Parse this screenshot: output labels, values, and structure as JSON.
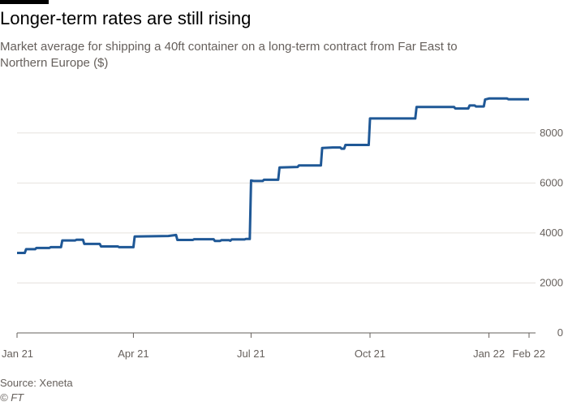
{
  "title": "Longer-term rates are still rising",
  "subtitle": "Market average for shipping a 40ft container on a long-term contract from Far East to Northern Europe ($)",
  "source": "Source: Xeneta",
  "credit": "© FT",
  "colors": {
    "line": "#1f5896",
    "grid": "#e6e2de",
    "axis": "#66605c"
  },
  "chart_data": {
    "type": "line",
    "title": "Longer-term rates are still rising",
    "subtitle": "Market average for shipping a 40ft container on a long-term contract from Far East to Northern Europe ($)",
    "xlabel": "",
    "ylabel": "",
    "xlim": [
      "2021-01-01",
      "2022-02-01"
    ],
    "ylim": [
      0,
      9000
    ],
    "y_ticks": [
      0,
      2000,
      4000,
      6000,
      8000
    ],
    "y_axis_position": "right",
    "x_ticks": [
      {
        "date": "2021-01-01",
        "label": "Jan 21"
      },
      {
        "date": "2021-04-01",
        "label": "Apr 21"
      },
      {
        "date": "2021-07-01",
        "label": "Jul 21"
      },
      {
        "date": "2021-10-01",
        "label": "Oct 21"
      },
      {
        "date": "2022-01-01",
        "label": "Jan 22"
      },
      {
        "date": "2022-02-01",
        "label": "Feb 22"
      }
    ],
    "grid": "horizontal",
    "series": [
      {
        "points": [
          [
            "2021-01-01",
            3200
          ],
          [
            "2021-01-07",
            3200
          ],
          [
            "2021-01-08",
            3350
          ],
          [
            "2021-01-15",
            3350
          ],
          [
            "2021-01-16",
            3400
          ],
          [
            "2021-01-26",
            3400
          ],
          [
            "2021-01-27",
            3430
          ],
          [
            "2021-02-04",
            3430
          ],
          [
            "2021-02-05",
            3700
          ],
          [
            "2021-02-15",
            3700
          ],
          [
            "2021-02-16",
            3730
          ],
          [
            "2021-02-21",
            3730
          ],
          [
            "2021-02-22",
            3560
          ],
          [
            "2021-03-06",
            3560
          ],
          [
            "2021-03-07",
            3460
          ],
          [
            "2021-03-20",
            3460
          ],
          [
            "2021-03-21",
            3430
          ],
          [
            "2021-04-01",
            3430
          ],
          [
            "2021-04-02",
            3860
          ],
          [
            "2021-04-28",
            3880
          ],
          [
            "2021-05-04",
            3920
          ],
          [
            "2021-05-05",
            3720
          ],
          [
            "2021-05-17",
            3720
          ],
          [
            "2021-05-18",
            3750
          ],
          [
            "2021-06-02",
            3750
          ],
          [
            "2021-06-03",
            3680
          ],
          [
            "2021-06-07",
            3680
          ],
          [
            "2021-06-08",
            3710
          ],
          [
            "2021-06-14",
            3710
          ],
          [
            "2021-06-15",
            3690
          ],
          [
            "2021-06-16",
            3740
          ],
          [
            "2021-06-26",
            3740
          ],
          [
            "2021-06-27",
            3760
          ],
          [
            "2021-06-30",
            3760
          ],
          [
            "2021-07-01",
            6100
          ],
          [
            "2021-07-03",
            6080
          ],
          [
            "2021-07-10",
            6080
          ],
          [
            "2021-07-11",
            6130
          ],
          [
            "2021-07-22",
            6130
          ],
          [
            "2021-07-23",
            6620
          ],
          [
            "2021-08-06",
            6640
          ],
          [
            "2021-08-07",
            6700
          ],
          [
            "2021-08-24",
            6700
          ],
          [
            "2021-08-25",
            7400
          ],
          [
            "2021-09-02",
            7420
          ],
          [
            "2021-09-08",
            7420
          ],
          [
            "2021-09-09",
            7370
          ],
          [
            "2021-09-11",
            7370
          ],
          [
            "2021-09-12",
            7520
          ],
          [
            "2021-09-30",
            7520
          ],
          [
            "2021-10-01",
            8580
          ],
          [
            "2021-11-05",
            8580
          ],
          [
            "2021-11-06",
            9040
          ],
          [
            "2021-12-05",
            9040
          ],
          [
            "2021-12-06",
            8980
          ],
          [
            "2021-12-16",
            8980
          ],
          [
            "2021-12-17",
            9100
          ],
          [
            "2021-12-21",
            9100
          ],
          [
            "2021-12-22",
            9060
          ],
          [
            "2021-12-28",
            9060
          ],
          [
            "2021-12-29",
            9340
          ],
          [
            "2022-01-01",
            9380
          ],
          [
            "2022-01-15",
            9380
          ],
          [
            "2022-01-16",
            9350
          ],
          [
            "2022-02-01",
            9350
          ]
        ]
      }
    ]
  }
}
